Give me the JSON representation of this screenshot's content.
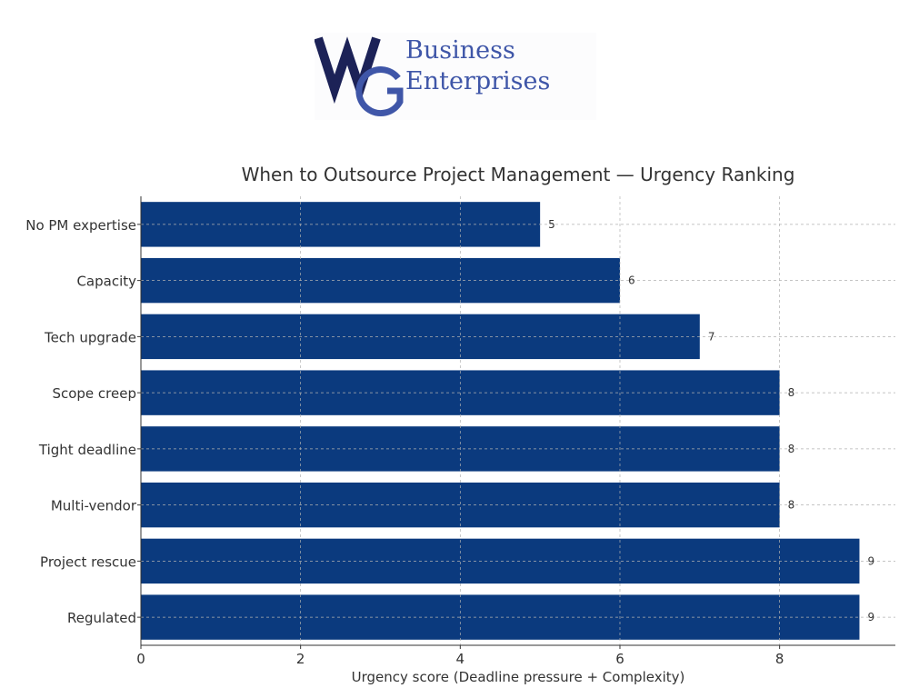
{
  "logo": {
    "text": "WG Business Enterprises",
    "colors": {
      "dark": "#1c2257",
      "light": "#3f56a8"
    }
  },
  "chart_data": {
    "type": "bar",
    "orientation": "horizontal",
    "title": "When to Outsource Project Management — Urgency Ranking",
    "xlabel": "Urgency score (Deadline pressure + Complexity)",
    "ylabel": "",
    "categories": [
      "No PM expertise",
      "Capacity",
      "Tech upgrade",
      "Scope creep",
      "Tight deadline",
      "Multi-vendor",
      "Project rescue",
      "Regulated"
    ],
    "values": [
      5,
      6,
      7,
      8,
      8,
      8,
      9,
      9
    ],
    "data_labels": [
      "5",
      "6",
      "7",
      "8",
      "8",
      "8",
      "9",
      "9"
    ],
    "xlim": [
      0,
      9.45
    ],
    "xticks": [
      0,
      2,
      4,
      6,
      8
    ],
    "xtick_labels": [
      "0",
      "2",
      "4",
      "6",
      "8"
    ],
    "grid": true,
    "bar_color": "#0b3a7e"
  }
}
